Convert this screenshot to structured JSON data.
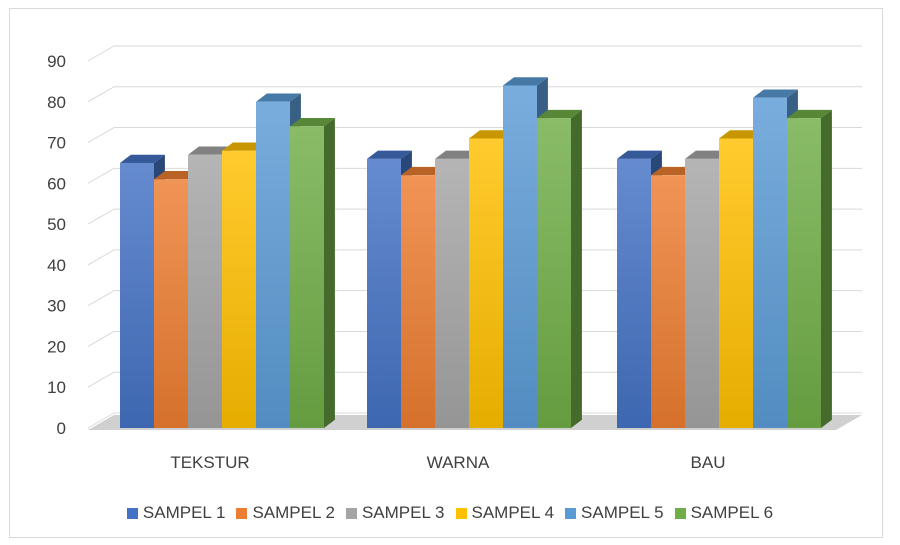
{
  "chart_data": {
    "type": "bar",
    "style": "3d-clustered-column",
    "categories": [
      "TEKSTUR",
      "WARNA",
      "BAU"
    ],
    "series": [
      {
        "name": "SAMPEL 1",
        "color": "#4472C4",
        "values": [
          65,
          66,
          66
        ]
      },
      {
        "name": "SAMPEL 2",
        "color": "#ED7D31",
        "values": [
          61,
          62,
          62
        ]
      },
      {
        "name": "SAMPEL 3",
        "color": "#A5A5A5",
        "values": [
          67,
          66,
          66
        ]
      },
      {
        "name": "SAMPEL 4",
        "color": "#FFC000",
        "values": [
          68,
          71,
          71
        ]
      },
      {
        "name": "SAMPEL 5",
        "color": "#5B9BD5",
        "values": [
          80,
          84,
          81
        ]
      },
      {
        "name": "SAMPEL 6",
        "color": "#70AD47",
        "values": [
          74,
          76,
          76
        ]
      }
    ],
    "yticks": [
      0,
      10,
      20,
      30,
      40,
      50,
      60,
      70,
      80,
      90
    ],
    "ylim": [
      0,
      90
    ],
    "grid": true,
    "legend": "bottom",
    "title": "",
    "xlabel": "",
    "ylabel": ""
  }
}
